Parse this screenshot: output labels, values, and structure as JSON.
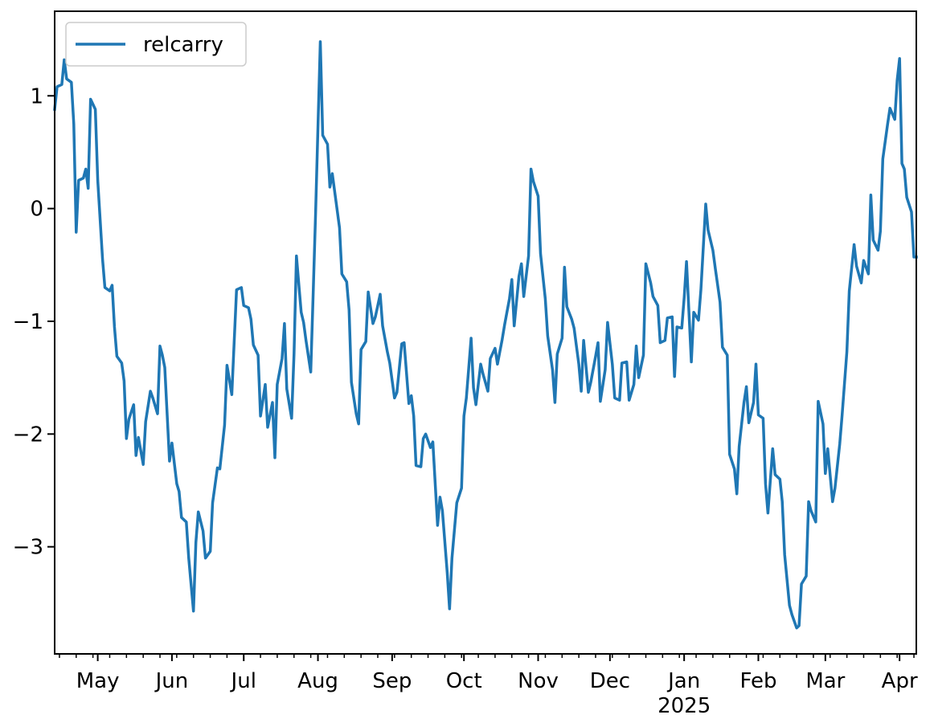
{
  "chart_data": {
    "type": "line",
    "title": "",
    "xlabel": "",
    "ylabel": "",
    "line_color": "#1f77b4",
    "legend": {
      "position": "top-left",
      "entries": [
        "relcarry"
      ]
    },
    "grid": false,
    "xlim": [
      "2024-04-13",
      "2025-04-08"
    ],
    "ylim": [
      -3.95,
      1.75
    ],
    "yticks": [
      {
        "value": 1,
        "label": "1"
      },
      {
        "value": 0,
        "label": "0"
      },
      {
        "value": -1,
        "label": "−1"
      },
      {
        "value": -2,
        "label": "−2"
      },
      {
        "value": -3,
        "label": "−3"
      }
    ],
    "xticks": [
      {
        "date": "2024-05-01",
        "label": "May",
        "sublabel": ""
      },
      {
        "date": "2024-06-01",
        "label": "Jun",
        "sublabel": ""
      },
      {
        "date": "2024-07-01",
        "label": "Jul",
        "sublabel": ""
      },
      {
        "date": "2024-08-01",
        "label": "Aug",
        "sublabel": ""
      },
      {
        "date": "2024-09-01",
        "label": "Sep",
        "sublabel": ""
      },
      {
        "date": "2024-10-01",
        "label": "Oct",
        "sublabel": ""
      },
      {
        "date": "2024-11-01",
        "label": "Nov",
        "sublabel": ""
      },
      {
        "date": "2024-12-01",
        "label": "Dec",
        "sublabel": ""
      },
      {
        "date": "2025-01-01",
        "label": "Jan",
        "sublabel": "2025"
      },
      {
        "date": "2025-02-01",
        "label": "Feb",
        "sublabel": ""
      },
      {
        "date": "2025-03-01",
        "label": "Mar",
        "sublabel": ""
      },
      {
        "date": "2025-04-01",
        "label": "Apr",
        "sublabel": ""
      }
    ],
    "series": [
      {
        "name": "relcarry",
        "points": [
          [
            "2024-04-13",
            0.88
          ],
          [
            "2024-04-14",
            1.08
          ],
          [
            "2024-04-16",
            1.1
          ],
          [
            "2024-04-17",
            1.32
          ],
          [
            "2024-04-18",
            1.15
          ],
          [
            "2024-04-20",
            1.12
          ],
          [
            "2024-04-21",
            0.75
          ],
          [
            "2024-04-22",
            -0.21
          ],
          [
            "2024-04-23",
            0.25
          ],
          [
            "2024-04-25",
            0.27
          ],
          [
            "2024-04-26",
            0.35
          ],
          [
            "2024-04-27",
            0.18
          ],
          [
            "2024-04-28",
            0.97
          ],
          [
            "2024-04-30",
            0.88
          ],
          [
            "2024-05-01",
            0.25
          ],
          [
            "2024-05-03",
            -0.45
          ],
          [
            "2024-05-04",
            -0.7
          ],
          [
            "2024-05-06",
            -0.73
          ],
          [
            "2024-05-07",
            -0.68
          ],
          [
            "2024-05-08",
            -1.05
          ],
          [
            "2024-05-09",
            -1.31
          ],
          [
            "2024-05-11",
            -1.37
          ],
          [
            "2024-05-12",
            -1.53
          ],
          [
            "2024-05-13",
            -2.04
          ],
          [
            "2024-05-14",
            -1.87
          ],
          [
            "2024-05-16",
            -1.74
          ],
          [
            "2024-05-17",
            -2.19
          ],
          [
            "2024-05-18",
            -2.03
          ],
          [
            "2024-05-20",
            -2.27
          ],
          [
            "2024-05-21",
            -1.89
          ],
          [
            "2024-05-23",
            -1.62
          ],
          [
            "2024-05-24",
            -1.68
          ],
          [
            "2024-05-26",
            -1.82
          ],
          [
            "2024-05-27",
            -1.22
          ],
          [
            "2024-05-28",
            -1.3
          ],
          [
            "2024-05-29",
            -1.41
          ],
          [
            "2024-05-31",
            -2.24
          ],
          [
            "2024-06-01",
            -2.08
          ],
          [
            "2024-06-03",
            -2.44
          ],
          [
            "2024-06-04",
            -2.51
          ],
          [
            "2024-06-05",
            -2.74
          ],
          [
            "2024-06-07",
            -2.78
          ],
          [
            "2024-06-08",
            -3.1
          ],
          [
            "2024-06-10",
            -3.57
          ],
          [
            "2024-06-11",
            -2.96
          ],
          [
            "2024-06-12",
            -2.69
          ],
          [
            "2024-06-14",
            -2.86
          ],
          [
            "2024-06-15",
            -3.1
          ],
          [
            "2024-06-17",
            -3.04
          ],
          [
            "2024-06-18",
            -2.61
          ],
          [
            "2024-06-20",
            -2.3
          ],
          [
            "2024-06-21",
            -2.31
          ],
          [
            "2024-06-23",
            -1.92
          ],
          [
            "2024-06-24",
            -1.39
          ],
          [
            "2024-06-26",
            -1.65
          ],
          [
            "2024-06-27",
            -1.19
          ],
          [
            "2024-06-28",
            -0.72
          ],
          [
            "2024-06-30",
            -0.7
          ],
          [
            "2024-07-01",
            -0.86
          ],
          [
            "2024-07-03",
            -0.88
          ],
          [
            "2024-07-04",
            -0.98
          ],
          [
            "2024-07-05",
            -1.21
          ],
          [
            "2024-07-07",
            -1.3
          ],
          [
            "2024-07-08",
            -1.84
          ],
          [
            "2024-07-10",
            -1.56
          ],
          [
            "2024-07-11",
            -1.94
          ],
          [
            "2024-07-13",
            -1.72
          ],
          [
            "2024-07-14",
            -2.21
          ],
          [
            "2024-07-15",
            -1.56
          ],
          [
            "2024-07-17",
            -1.33
          ],
          [
            "2024-07-18",
            -1.02
          ],
          [
            "2024-07-19",
            -1.6
          ],
          [
            "2024-07-21",
            -1.86
          ],
          [
            "2024-07-22",
            -1.29
          ],
          [
            "2024-07-23",
            -0.42
          ],
          [
            "2024-07-25",
            -0.92
          ],
          [
            "2024-07-26",
            -1.01
          ],
          [
            "2024-07-27",
            -1.17
          ],
          [
            "2024-07-29",
            -1.45
          ],
          [
            "2024-07-30",
            -0.76
          ],
          [
            "2024-07-31",
            -0.05
          ],
          [
            "2024-08-02",
            1.48
          ],
          [
            "2024-08-03",
            0.65
          ],
          [
            "2024-08-05",
            0.57
          ],
          [
            "2024-08-06",
            0.19
          ],
          [
            "2024-08-07",
            0.31
          ],
          [
            "2024-08-08",
            0.15
          ],
          [
            "2024-08-10",
            -0.17
          ],
          [
            "2024-08-11",
            -0.58
          ],
          [
            "2024-08-13",
            -0.65
          ],
          [
            "2024-08-14",
            -0.9
          ],
          [
            "2024-08-15",
            -1.54
          ],
          [
            "2024-08-17",
            -1.82
          ],
          [
            "2024-08-18",
            -1.91
          ],
          [
            "2024-08-19",
            -1.25
          ],
          [
            "2024-08-21",
            -1.18
          ],
          [
            "2024-08-22",
            -0.74
          ],
          [
            "2024-08-24",
            -1.02
          ],
          [
            "2024-08-25",
            -0.96
          ],
          [
            "2024-08-27",
            -0.76
          ],
          [
            "2024-08-28",
            -1.04
          ],
          [
            "2024-08-30",
            -1.27
          ],
          [
            "2024-08-31",
            -1.37
          ],
          [
            "2024-09-02",
            -1.68
          ],
          [
            "2024-09-03",
            -1.63
          ],
          [
            "2024-09-05",
            -1.2
          ],
          [
            "2024-09-06",
            -1.19
          ],
          [
            "2024-09-08",
            -1.73
          ],
          [
            "2024-09-09",
            -1.66
          ],
          [
            "2024-09-10",
            -1.84
          ],
          [
            "2024-09-11",
            -2.28
          ],
          [
            "2024-09-13",
            -2.29
          ],
          [
            "2024-09-14",
            -2.04
          ],
          [
            "2024-09-15",
            -2.0
          ],
          [
            "2024-09-17",
            -2.12
          ],
          [
            "2024-09-18",
            -2.07
          ],
          [
            "2024-09-20",
            -2.81
          ],
          [
            "2024-09-21",
            -2.56
          ],
          [
            "2024-09-22",
            -2.68
          ],
          [
            "2024-09-24",
            -3.23
          ],
          [
            "2024-09-25",
            -3.55
          ],
          [
            "2024-09-26",
            -3.1
          ],
          [
            "2024-09-28",
            -2.61
          ],
          [
            "2024-09-30",
            -2.48
          ],
          [
            "2024-10-01",
            -1.84
          ],
          [
            "2024-10-02",
            -1.68
          ],
          [
            "2024-10-04",
            -1.15
          ],
          [
            "2024-10-05",
            -1.59
          ],
          [
            "2024-10-06",
            -1.74
          ],
          [
            "2024-10-08",
            -1.38
          ],
          [
            "2024-10-09",
            -1.47
          ],
          [
            "2024-10-11",
            -1.62
          ],
          [
            "2024-10-12",
            -1.33
          ],
          [
            "2024-10-14",
            -1.24
          ],
          [
            "2024-10-15",
            -1.38
          ],
          [
            "2024-10-17",
            -1.16
          ],
          [
            "2024-10-18",
            -1.03
          ],
          [
            "2024-10-20",
            -0.8
          ],
          [
            "2024-10-21",
            -0.63
          ],
          [
            "2024-10-22",
            -1.04
          ],
          [
            "2024-10-24",
            -0.6
          ],
          [
            "2024-10-25",
            -0.49
          ],
          [
            "2024-10-26",
            -0.78
          ],
          [
            "2024-10-28",
            -0.42
          ],
          [
            "2024-10-29",
            0.35
          ],
          [
            "2024-10-30",
            0.24
          ],
          [
            "2024-11-01",
            0.11
          ],
          [
            "2024-11-02",
            -0.4
          ],
          [
            "2024-11-04",
            -0.8
          ],
          [
            "2024-11-05",
            -1.13
          ],
          [
            "2024-11-07",
            -1.43
          ],
          [
            "2024-11-08",
            -1.72
          ],
          [
            "2024-11-09",
            -1.29
          ],
          [
            "2024-11-11",
            -1.15
          ],
          [
            "2024-11-12",
            -0.52
          ],
          [
            "2024-11-13",
            -0.87
          ],
          [
            "2024-11-15",
            -0.98
          ],
          [
            "2024-11-16",
            -1.06
          ],
          [
            "2024-11-18",
            -1.38
          ],
          [
            "2024-11-19",
            -1.62
          ],
          [
            "2024-11-20",
            -1.17
          ],
          [
            "2024-11-22",
            -1.63
          ],
          [
            "2024-11-23",
            -1.54
          ],
          [
            "2024-11-25",
            -1.31
          ],
          [
            "2024-11-26",
            -1.19
          ],
          [
            "2024-11-27",
            -1.71
          ],
          [
            "2024-11-29",
            -1.43
          ],
          [
            "2024-11-30",
            -1.01
          ],
          [
            "2024-12-02",
            -1.38
          ],
          [
            "2024-12-03",
            -1.68
          ],
          [
            "2024-12-05",
            -1.7
          ],
          [
            "2024-12-06",
            -1.37
          ],
          [
            "2024-12-08",
            -1.36
          ],
          [
            "2024-12-09",
            -1.7
          ],
          [
            "2024-12-11",
            -1.56
          ],
          [
            "2024-12-12",
            -1.22
          ],
          [
            "2024-12-13",
            -1.5
          ],
          [
            "2024-12-15",
            -1.3
          ],
          [
            "2024-12-16",
            -0.49
          ],
          [
            "2024-12-18",
            -0.66
          ],
          [
            "2024-12-19",
            -0.78
          ],
          [
            "2024-12-21",
            -0.86
          ],
          [
            "2024-12-22",
            -1.19
          ],
          [
            "2024-12-24",
            -1.17
          ],
          [
            "2024-12-25",
            -0.97
          ],
          [
            "2024-12-27",
            -0.96
          ],
          [
            "2024-12-28",
            -1.49
          ],
          [
            "2024-12-29",
            -1.05
          ],
          [
            "2024-12-31",
            -1.06
          ],
          [
            "2025-01-01",
            -0.79
          ],
          [
            "2025-01-02",
            -0.47
          ],
          [
            "2025-01-04",
            -1.36
          ],
          [
            "2025-01-05",
            -0.92
          ],
          [
            "2025-01-07",
            -0.99
          ],
          [
            "2025-01-08",
            -0.72
          ],
          [
            "2025-01-10",
            0.04
          ],
          [
            "2025-01-11",
            -0.19
          ],
          [
            "2025-01-13",
            -0.37
          ],
          [
            "2025-01-14",
            -0.53
          ],
          [
            "2025-01-16",
            -0.83
          ],
          [
            "2025-01-17",
            -1.23
          ],
          [
            "2025-01-19",
            -1.3
          ],
          [
            "2025-01-20",
            -2.18
          ],
          [
            "2025-01-22",
            -2.31
          ],
          [
            "2025-01-23",
            -2.53
          ],
          [
            "2025-01-24",
            -2.11
          ],
          [
            "2025-01-26",
            -1.72
          ],
          [
            "2025-01-27",
            -1.58
          ],
          [
            "2025-01-28",
            -1.9
          ],
          [
            "2025-01-30",
            -1.72
          ],
          [
            "2025-01-31",
            -1.38
          ],
          [
            "2025-02-01",
            -1.83
          ],
          [
            "2025-02-03",
            -1.86
          ],
          [
            "2025-02-04",
            -2.44
          ],
          [
            "2025-02-05",
            -2.7
          ],
          [
            "2025-02-07",
            -2.13
          ],
          [
            "2025-02-08",
            -2.36
          ],
          [
            "2025-02-10",
            -2.4
          ],
          [
            "2025-02-11",
            -2.6
          ],
          [
            "2025-02-12",
            -3.07
          ],
          [
            "2025-02-14",
            -3.52
          ],
          [
            "2025-02-15",
            -3.6
          ],
          [
            "2025-02-17",
            -3.72
          ],
          [
            "2025-02-18",
            -3.7
          ],
          [
            "2025-02-19",
            -3.33
          ],
          [
            "2025-02-21",
            -3.26
          ],
          [
            "2025-02-22",
            -2.6
          ],
          [
            "2025-02-23",
            -2.68
          ],
          [
            "2025-02-25",
            -2.78
          ],
          [
            "2025-02-26",
            -1.71
          ],
          [
            "2025-02-28",
            -1.91
          ],
          [
            "2025-03-01",
            -2.35
          ],
          [
            "2025-03-02",
            -2.13
          ],
          [
            "2025-03-04",
            -2.6
          ],
          [
            "2025-03-05",
            -2.48
          ],
          [
            "2025-03-07",
            -2.09
          ],
          [
            "2025-03-08",
            -1.83
          ],
          [
            "2025-03-10",
            -1.27
          ],
          [
            "2025-03-11",
            -0.73
          ],
          [
            "2025-03-13",
            -0.32
          ],
          [
            "2025-03-14",
            -0.51
          ],
          [
            "2025-03-16",
            -0.66
          ],
          [
            "2025-03-17",
            -0.46
          ],
          [
            "2025-03-19",
            -0.58
          ],
          [
            "2025-03-20",
            0.12
          ],
          [
            "2025-03-21",
            -0.28
          ],
          [
            "2025-03-23",
            -0.37
          ],
          [
            "2025-03-24",
            -0.2
          ],
          [
            "2025-03-25",
            0.44
          ],
          [
            "2025-03-27",
            0.75
          ],
          [
            "2025-03-28",
            0.89
          ],
          [
            "2025-03-30",
            0.79
          ],
          [
            "2025-03-31",
            1.14
          ],
          [
            "2025-04-01",
            1.33
          ],
          [
            "2025-04-02",
            0.4
          ],
          [
            "2025-04-03",
            0.35
          ],
          [
            "2025-04-04",
            0.1
          ],
          [
            "2025-04-06",
            -0.03
          ],
          [
            "2025-04-07",
            -0.43
          ],
          [
            "2025-04-08",
            -0.43
          ]
        ]
      }
    ]
  }
}
